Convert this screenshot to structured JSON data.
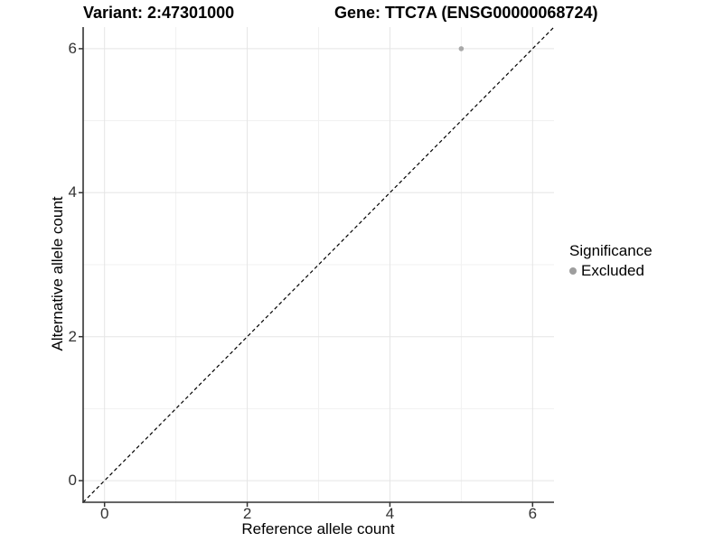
{
  "header": {
    "variant_title": "Variant: 2:47301000",
    "gene_title": "Gene: TTC7A (ENSG00000068724)"
  },
  "chart_data": {
    "type": "scatter",
    "title": "Variant: 2:47301000   Gene: TTC7A (ENSG00000068724)",
    "xlabel": "Reference allele count",
    "ylabel": "Alternative allele count",
    "xlim": [
      -0.3,
      6.3
    ],
    "ylim": [
      -0.3,
      6.3
    ],
    "x_ticks": [
      0,
      2,
      4,
      6
    ],
    "y_ticks": [
      0,
      2,
      4,
      6
    ],
    "x_minor_ticks": [
      1,
      3,
      5
    ],
    "y_minor_ticks": [
      1,
      3,
      5
    ],
    "grid": "major+minor",
    "legend_position": "right",
    "series": [
      {
        "name": "Excluded",
        "color": "#a9a9a9",
        "points": [
          {
            "x": 5,
            "y": 6
          }
        ]
      }
    ],
    "reference_line": {
      "style": "dashed",
      "color": "#000000",
      "from": [
        -0.3,
        -0.3
      ],
      "to": [
        6.3,
        6.3
      ]
    }
  },
  "legend": {
    "title": "Significance",
    "entries": [
      {
        "label": "Excluded",
        "color": "#9e9e9e"
      }
    ]
  },
  "colors": {
    "background": "#ffffff",
    "grid_major": "#e5e5e5",
    "grid_minor": "#f1f1f1",
    "axis_line": "#333333",
    "tick_mark": "#333333",
    "tick_text": "#333333",
    "title_text": "#000000"
  }
}
